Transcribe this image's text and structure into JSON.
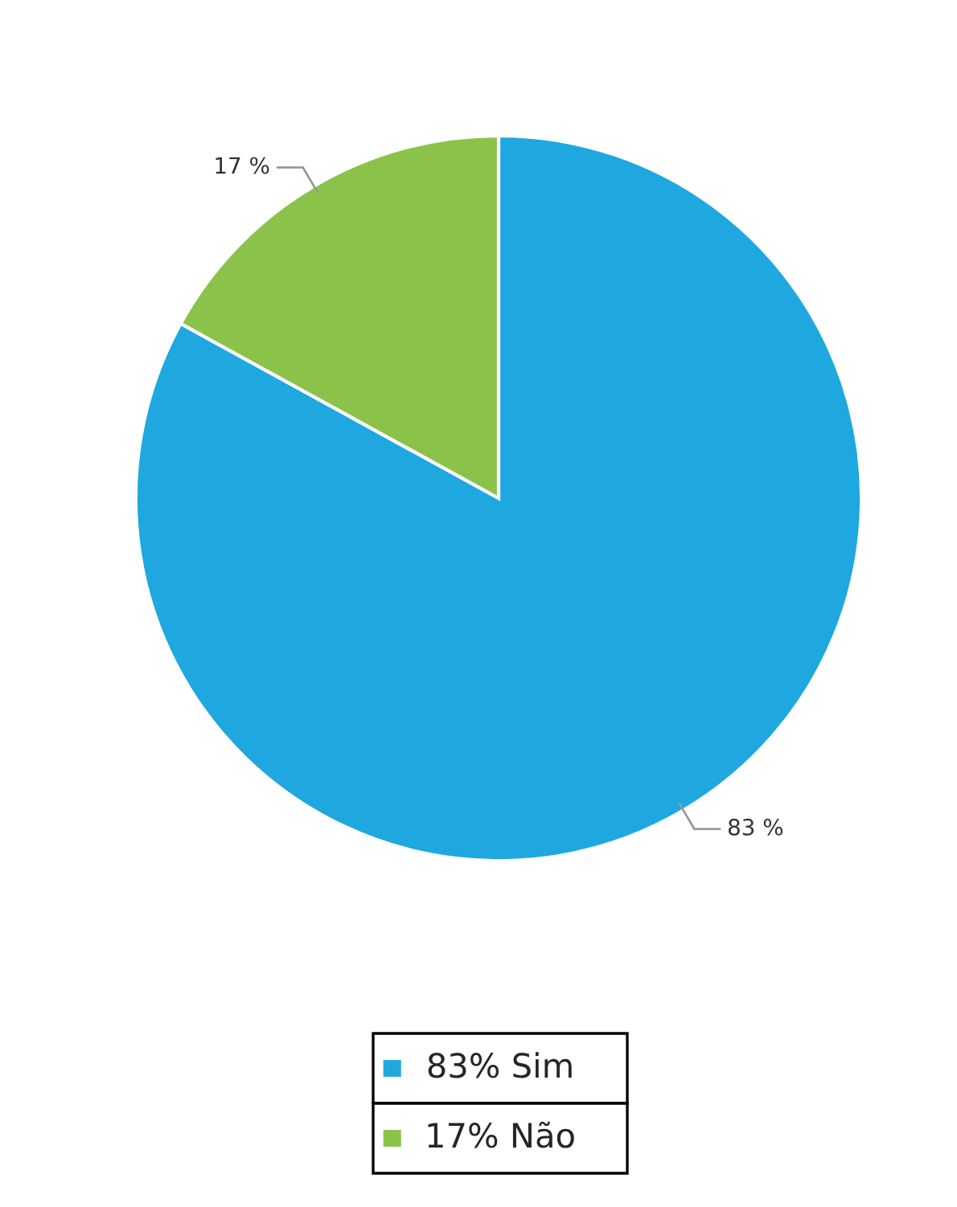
{
  "chart_data": {
    "type": "pie",
    "categories": [
      "83% Sim",
      "17% Não"
    ],
    "values": [
      83,
      17
    ],
    "colors": [
      "#1fa8df",
      "#8bc34a"
    ],
    "value_labels": [
      "83 %",
      "17 %"
    ],
    "legend": "bottom"
  }
}
